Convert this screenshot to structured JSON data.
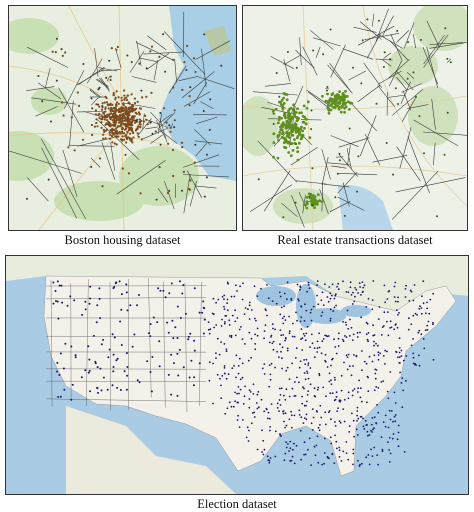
{
  "figure": {
    "panels": [
      {
        "id": "boston",
        "caption": "Boston housing dataset",
        "point_color": "#7a4a1c",
        "water_color": "#a8cfe6",
        "land_color": "#e9efe0"
      },
      {
        "id": "realestate",
        "caption": "Real estate transactions dataset",
        "point_color": "#5f8f1e",
        "water_color": "#b7d6ea",
        "land_color": "#edf1e8"
      },
      {
        "id": "election",
        "caption": "Election dataset",
        "point_color": "#1a1a6e",
        "water_color": "#a9cbe3",
        "land_color": "#f3f1ea"
      }
    ],
    "map_labels": [],
    "diagram_type": "voronoi-over-basemap"
  }
}
